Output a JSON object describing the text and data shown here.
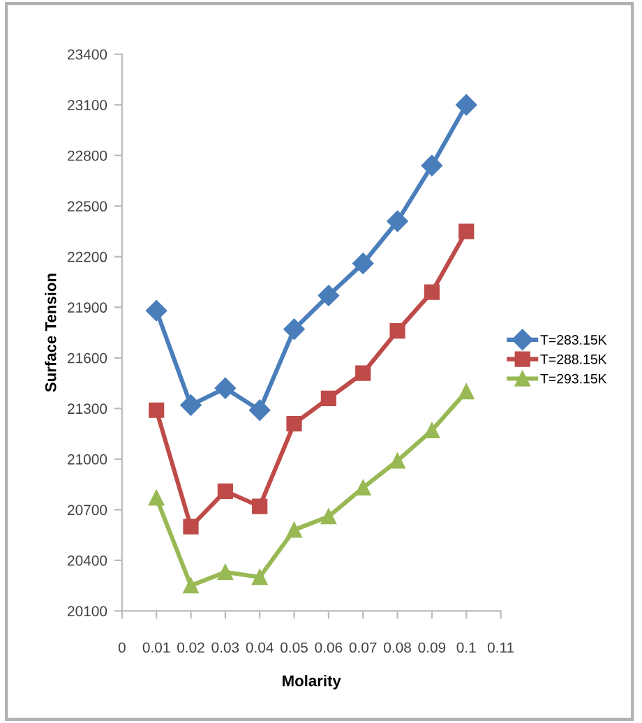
{
  "chart_data": {
    "type": "line",
    "xlabel": "Molarity",
    "ylabel": "Surface Tension",
    "x": [
      0.01,
      0.02,
      0.03,
      0.04,
      0.05,
      0.06,
      0.07,
      0.08,
      0.09,
      0.1
    ],
    "series": [
      {
        "name": "T=283.15K",
        "color": "#4a7ebb",
        "marker": "diamond",
        "values": [
          21880,
          21320,
          21420,
          21290,
          21770,
          21970,
          22160,
          22410,
          22740,
          23100
        ]
      },
      {
        "name": "T=288.15K",
        "color": "#be4b48",
        "marker": "square",
        "values": [
          21290,
          20600,
          20810,
          20720,
          21210,
          21360,
          21510,
          21760,
          21990,
          22350
        ]
      },
      {
        "name": "T=293.15K",
        "color": "#98b954",
        "marker": "triangle",
        "values": [
          20770,
          20250,
          20330,
          20300,
          20580,
          20660,
          20830,
          20990,
          21170,
          21400
        ]
      }
    ],
    "xlim": [
      0,
      0.11
    ],
    "xticks": [
      0,
      0.01,
      0.02,
      0.03,
      0.04,
      0.05,
      0.06,
      0.07,
      0.08,
      0.09,
      {
        "value": 0.1,
        "label": "0.1"
      },
      0.11
    ],
    "ylim": [
      20100,
      23400
    ],
    "yticks": [
      20100,
      20400,
      20700,
      21000,
      21300,
      21600,
      21900,
      22200,
      22500,
      22800,
      23100,
      23400
    ],
    "grid": false,
    "legend": "right",
    "line_style": "solid"
  }
}
